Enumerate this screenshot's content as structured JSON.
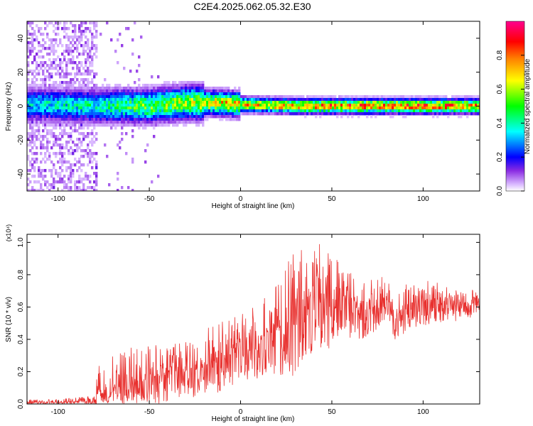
{
  "title": "C2E4.2025.062.05.32.E30",
  "chart_data": [
    {
      "type": "heatmap",
      "xlabel": "Height of straight line (km)",
      "ylabel": "Frequency (Hz)",
      "xlim": [
        -117,
        131
      ],
      "ylim": [
        -50,
        50
      ],
      "xticks": [
        -100,
        -50,
        0,
        50,
        100
      ],
      "yticks": [
        -40,
        -20,
        0,
        20,
        40
      ],
      "colorbar": {
        "label": "Normalized spectral amplitude",
        "range": [
          0,
          1
        ],
        "ticks": [
          "0.0",
          "0.2",
          "0.4",
          "0.6",
          "0.8"
        ],
        "colormap": [
          "#d9b8ff",
          "#7a00ff",
          "#0000ff",
          "#00ffff",
          "#00ff00",
          "#ffff00",
          "#ff8000",
          "#ff0000",
          "#ff00a0"
        ]
      },
      "ridge": {
        "description_x": [
          -117,
          -80,
          -50,
          -30,
          -15,
          0,
          30,
          60,
          100,
          131
        ],
        "center_frequency": [
          1,
          0,
          0,
          2,
          2,
          1,
          0,
          0,
          0,
          0
        ],
        "peak_amplitude": [
          0.4,
          0.45,
          0.6,
          0.65,
          0.75,
          0.8,
          0.85,
          0.9,
          0.9,
          0.85
        ]
      },
      "noise_region_x": [
        -117,
        -78
      ]
    },
    {
      "type": "line",
      "xlabel": "Height of straight line (km)",
      "ylabel": "SNR (10 * v/v)",
      "yscale_label": "(x10⁴)",
      "xlim": [
        -117,
        131
      ],
      "ylim": [
        0,
        1.05
      ],
      "xticks": [
        -100,
        -50,
        0,
        50,
        100
      ],
      "yticks": [
        "0.0",
        "0.2",
        "0.4",
        "0.6",
        "0.8",
        "1.0"
      ],
      "series": [
        {
          "color": "#e8302e",
          "x": [
            -117,
            -100,
            -80,
            -78,
            -60,
            -40,
            -20,
            -18,
            0,
            20,
            30,
            40,
            47,
            55,
            60,
            70,
            80,
            84,
            90,
            100,
            110,
            120,
            131
          ],
          "y": [
            0.01,
            0.01,
            0.02,
            0.08,
            0.12,
            0.18,
            0.22,
            0.25,
            0.33,
            0.45,
            0.55,
            0.62,
            0.66,
            0.62,
            0.6,
            0.58,
            0.66,
            0.5,
            0.6,
            0.62,
            0.62,
            0.61,
            0.62
          ],
          "peak_envelope": [
            0.03,
            0.03,
            0.05,
            0.25,
            0.35,
            0.38,
            0.4,
            0.48,
            0.55,
            0.75,
            0.98,
            0.95,
            1.05,
            0.85,
            0.82,
            0.78,
            0.8,
            0.62,
            0.78,
            0.77,
            0.75,
            0.72,
            0.7
          ]
        }
      ]
    }
  ]
}
